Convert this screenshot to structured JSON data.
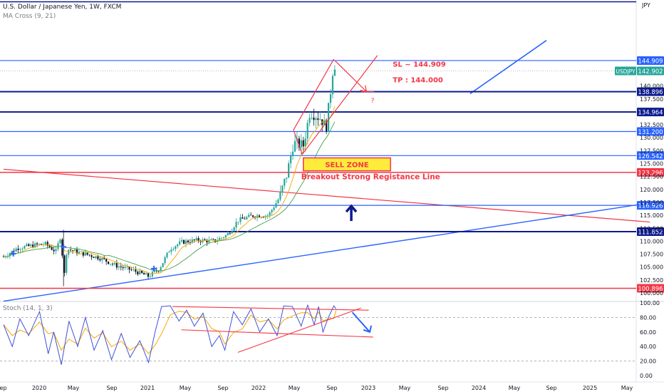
{
  "header": {
    "title": "U.S. Dollar / Japanese Yen, 1W, FXCM",
    "indicator": "MA Cross (9, 21)",
    "currency": "JPY"
  },
  "stoch": {
    "label": "Stoch (14, 1, 3)"
  },
  "annotations": {
    "sl": "SL ~ 144.909",
    "tp": "TP : 144.000",
    "question": "?",
    "sell_zone": "SELL ZONE",
    "breakout": "Breakout Strong Registance Line"
  },
  "colors": {
    "red": "#f23645",
    "blue": "#2962ff",
    "navy": "#0d1b8c",
    "candle_up": "#26a69a",
    "candle_down": "#131722",
    "ma_fast": "#f7a600",
    "ma_slow": "#43a047",
    "stoch_k": "#3f51d9",
    "stoch_d": "#f7a600",
    "sell_zone_fill": "#ffeb3b"
  },
  "chart_data": {
    "type": "candlestick",
    "symbol": "USDJPY",
    "last_price": "142.902",
    "x_ticks": [
      "Sep",
      "2020",
      "May",
      "Sep",
      "2021",
      "May",
      "Sep",
      "2022",
      "May",
      "Sep",
      "2023",
      "May",
      "Sep",
      "2024",
      "May",
      "Sep",
      "2025",
      "May"
    ],
    "y_ticks": [
      "140.000",
      "137.500",
      "132.500",
      "130.000",
      "127.500",
      "125.000",
      "122.500",
      "120.000",
      "117.500",
      "115.000",
      "112.500",
      "110.000",
      "107.500",
      "105.000",
      "102.500",
      "100.000"
    ],
    "ylim": [
      99.0,
      148.0
    ],
    "price_levels": [
      {
        "label": "144.909",
        "value": 144.909,
        "style": "blue"
      },
      {
        "label": "138.896",
        "value": 138.896,
        "style": "navy"
      },
      {
        "label": "134.964",
        "value": 134.964,
        "style": "navy"
      },
      {
        "label": "131.200",
        "value": 131.2,
        "style": "blue"
      },
      {
        "label": "126.542",
        "value": 126.542,
        "style": "blue"
      },
      {
        "label": "123.296",
        "value": 123.296,
        "style": "red"
      },
      {
        "label": "116.926",
        "value": 116.926,
        "style": "blue"
      },
      {
        "label": "111.852",
        "value": 111.852,
        "style": "navy"
      },
      {
        "label": "100.896",
        "value": 100.896,
        "style": "red"
      }
    ],
    "price_points": [
      [
        2019.67,
        107.0
      ],
      [
        2019.8,
        108.7
      ],
      [
        2019.95,
        109.2
      ],
      [
        2020.05,
        109.5
      ],
      [
        2020.15,
        108.0
      ],
      [
        2020.2,
        111.5
      ],
      [
        2020.22,
        102.0
      ],
      [
        2020.25,
        108.5
      ],
      [
        2020.4,
        107.6
      ],
      [
        2020.55,
        106.8
      ],
      [
        2020.7,
        105.3
      ],
      [
        2020.85,
        104.4
      ],
      [
        2021.0,
        103.2
      ],
      [
        2021.1,
        104.7
      ],
      [
        2021.2,
        108.6
      ],
      [
        2021.3,
        109.8
      ],
      [
        2021.45,
        110.2
      ],
      [
        2021.6,
        110.0
      ],
      [
        2021.72,
        111.2
      ],
      [
        2021.82,
        114.0
      ],
      [
        2021.95,
        114.9
      ],
      [
        2022.1,
        115.0
      ],
      [
        2022.2,
        118.4
      ],
      [
        2022.27,
        123.0
      ],
      [
        2022.33,
        129.0
      ],
      [
        2022.42,
        128.5
      ],
      [
        2022.48,
        135.0
      ],
      [
        2022.58,
        133.7
      ],
      [
        2022.63,
        132.0
      ],
      [
        2022.67,
        139.0
      ],
      [
        2022.7,
        144.9
      ],
      [
        2022.72,
        142.9
      ]
    ],
    "stoch_y_ticks": [
      "100.00",
      "80.00",
      "60.00",
      "40.00",
      "20.00",
      "0.00"
    ],
    "stoch_points": [
      [
        2019.67,
        70
      ],
      [
        2019.75,
        40
      ],
      [
        2019.82,
        78
      ],
      [
        2019.9,
        55
      ],
      [
        2020.0,
        88
      ],
      [
        2020.08,
        30
      ],
      [
        2020.13,
        60
      ],
      [
        2020.2,
        15
      ],
      [
        2020.27,
        75
      ],
      [
        2020.35,
        40
      ],
      [
        2020.42,
        80
      ],
      [
        2020.5,
        35
      ],
      [
        2020.58,
        62
      ],
      [
        2020.66,
        22
      ],
      [
        2020.75,
        58
      ],
      [
        2020.83,
        25
      ],
      [
        2020.92,
        48
      ],
      [
        2021.0,
        18
      ],
      [
        2021.06,
        60
      ],
      [
        2021.12,
        95
      ],
      [
        2021.2,
        96
      ],
      [
        2021.28,
        75
      ],
      [
        2021.35,
        90
      ],
      [
        2021.42,
        68
      ],
      [
        2021.5,
        86
      ],
      [
        2021.58,
        40
      ],
      [
        2021.65,
        55
      ],
      [
        2021.7,
        35
      ],
      [
        2021.78,
        88
      ],
      [
        2021.86,
        70
      ],
      [
        2021.94,
        92
      ],
      [
        2022.02,
        60
      ],
      [
        2022.1,
        78
      ],
      [
        2022.18,
        55
      ],
      [
        2022.24,
        96
      ],
      [
        2022.32,
        95
      ],
      [
        2022.4,
        68
      ],
      [
        2022.46,
        97
      ],
      [
        2022.52,
        70
      ],
      [
        2022.56,
        95
      ],
      [
        2022.6,
        60
      ],
      [
        2022.65,
        80
      ],
      [
        2022.7,
        96
      ],
      [
        2022.72,
        92
      ]
    ]
  }
}
